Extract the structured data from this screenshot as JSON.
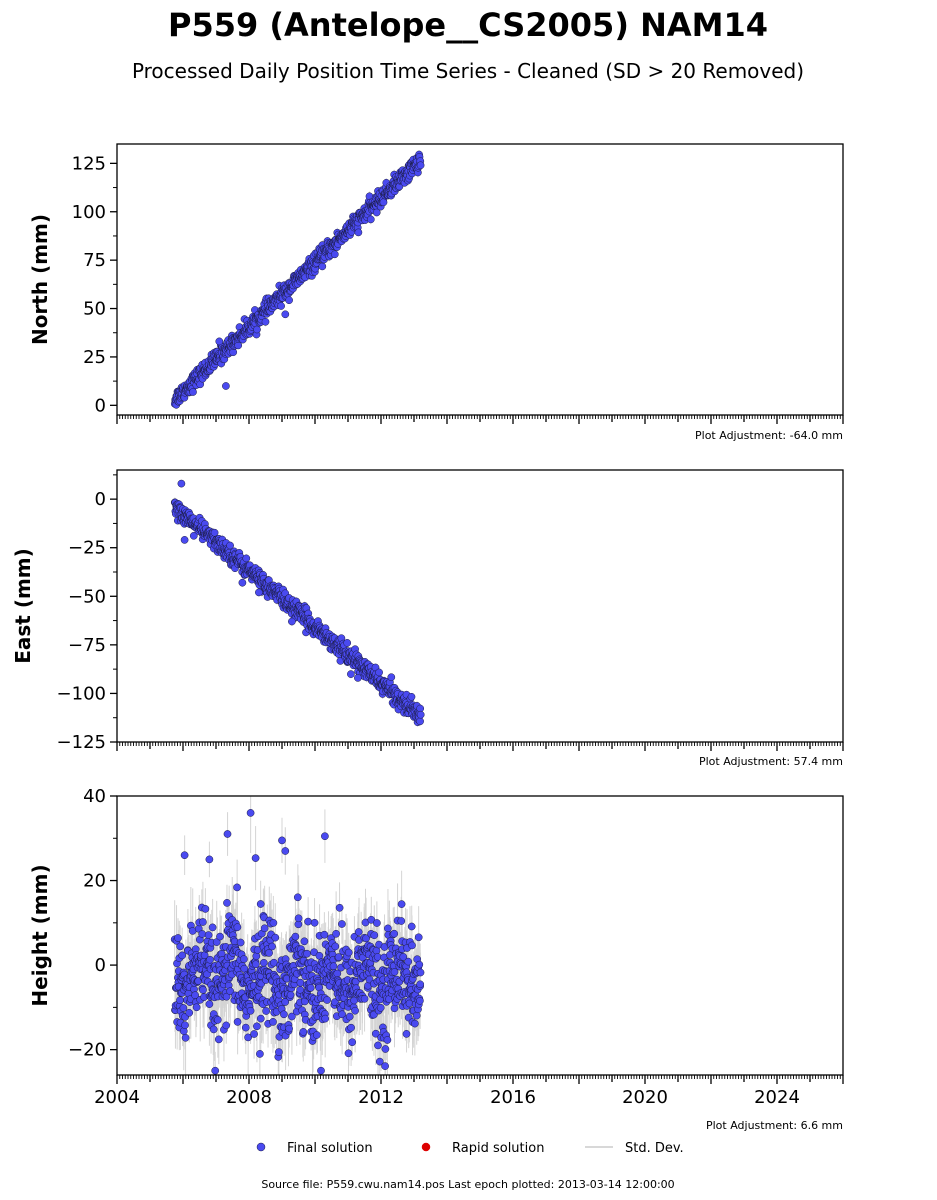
{
  "chart_data": {
    "type": "scatter",
    "title": "P559 (Antelope__CS2005) NAM14",
    "subtitle": "Processed Daily Position Time Series - Cleaned (SD > 20 Removed)",
    "x_range": [
      2004,
      2026
    ],
    "x_ticks": [
      "2004",
      "2008",
      "2012",
      "2016",
      "2020",
      "2024"
    ],
    "x_data_range": [
      2005.75,
      2013.2
    ],
    "panels": [
      {
        "id": "north",
        "ylabel": "North (mm)",
        "ylim": [
          -5,
          135
        ],
        "yticks": [
          0,
          25,
          50,
          75,
          100,
          125
        ],
        "adjustment": "Plot Adjustment: -64.0 mm",
        "trend": {
          "start": [
            2005.75,
            3
          ],
          "end": [
            2013.2,
            127
          ]
        },
        "scatter_mm": 2.2,
        "std_mm": 1.5,
        "outliers": [
          [
            2007.3,
            10
          ],
          [
            2009.1,
            47
          ],
          [
            2007.1,
            33
          ],
          [
            2010.6,
            78
          ]
        ]
      },
      {
        "id": "east",
        "ylabel": "East (mm)",
        "ylim": [
          -125,
          15
        ],
        "yticks": [
          0,
          -25,
          -50,
          -75,
          -100,
          -125
        ],
        "yticklabels": [
          "0",
          "−25",
          "−50",
          "−75",
          "−100",
          "−125"
        ],
        "adjustment": "Plot Adjustment: 57.4 mm",
        "trend": {
          "start": [
            2005.75,
            -4
          ],
          "end": [
            2013.2,
            -112
          ]
        },
        "scatter_mm": 2.3,
        "std_mm": 1.5,
        "outliers": [
          [
            2005.95,
            8
          ],
          [
            2006.05,
            -21
          ],
          [
            2007.8,
            -43
          ],
          [
            2008.3,
            -48
          ],
          [
            2009.3,
            -63
          ],
          [
            2011.3,
            -92
          ]
        ]
      },
      {
        "id": "height",
        "ylabel": "Height (mm)",
        "ylim": [
          -26,
          40
        ],
        "yticks": [
          -20,
          0,
          20,
          40
        ],
        "yticklabels": [
          "−20",
          "0",
          "20",
          "40"
        ],
        "adjustment": "Plot Adjustment: 6.6 mm",
        "trend": {
          "start": [
            2005.75,
            -3
          ],
          "end": [
            2013.2,
            -3
          ]
        },
        "seasonal_amp": 4,
        "scatter_mm": 6,
        "std_mm": 6,
        "outliers": [
          [
            2006.05,
            26
          ],
          [
            2007.35,
            31
          ],
          [
            2008.05,
            36
          ],
          [
            2009.0,
            29.5
          ],
          [
            2010.3,
            30.5
          ],
          [
            2006.8,
            25
          ],
          [
            2008.2,
            25.3
          ],
          [
            2009.1,
            27
          ]
        ]
      }
    ],
    "legend": [
      {
        "label": "Final solution",
        "color": "#4a4af0",
        "marker": "circle"
      },
      {
        "label": "Rapid solution",
        "color": "#dd0000",
        "marker": "circle"
      },
      {
        "label": "Std. Dev.",
        "color": "#cccccc",
        "marker": "line"
      }
    ],
    "footer": "Source file: P559.cwu.nam14.pos  Last epoch plotted: 2013-03-14 12:00:00"
  }
}
